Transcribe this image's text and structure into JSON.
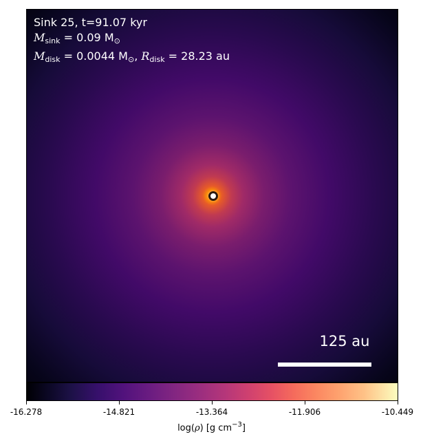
{
  "info": {
    "line1": "Sink 25, t=91.07 kyr",
    "m_sink_label": "M",
    "m_sink_sub": "sink",
    "m_sink_value": " = 0.09 M",
    "m_sink_unit_sub": "⊙",
    "m_disk_label": "M",
    "m_disk_sub": "disk",
    "m_disk_value": " = 0.0044 M",
    "m_disk_unit_sub": "⊙",
    "r_disk_sep": ", ",
    "r_disk_label": "R",
    "r_disk_sub": "disk",
    "r_disk_value": " = 28.23 au"
  },
  "scale_bar": {
    "label": "125 au"
  },
  "colorbar": {
    "ticks": [
      "-16.278",
      "-14.821",
      "-13.364",
      "-11.906",
      "-10.449"
    ],
    "label_pre": "log(",
    "label_rho": "ρ",
    "label_post": ") [g cm",
    "label_exp": "−3",
    "label_end": "]",
    "colormap": "inferno"
  }
}
